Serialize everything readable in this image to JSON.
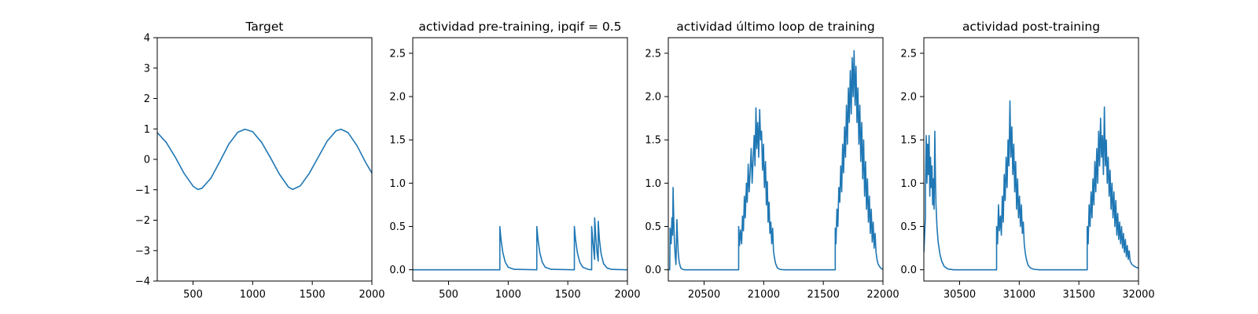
{
  "chart_data": [
    {
      "type": "line",
      "title": "Target",
      "xlim": [
        200,
        2000
      ],
      "ylim": [
        -4,
        4
      ],
      "xticks": [
        500,
        1000,
        1500,
        2000
      ],
      "yticks": [
        -4,
        -3,
        -2,
        -1,
        0,
        1,
        2,
        3,
        4
      ],
      "series": [
        {
          "color": "#1f77b4",
          "x": [
            200,
            275,
            350,
            425,
            500,
            540,
            575,
            650,
            725,
            800,
            875,
            935,
            1000,
            1075,
            1150,
            1225,
            1300,
            1335,
            1400,
            1475,
            1550,
            1625,
            1700,
            1740,
            1800,
            1875,
            1950,
            2000
          ],
          "y": [
            0.88,
            0.56,
            0.08,
            -0.46,
            -0.88,
            -0.99,
            -0.95,
            -0.62,
            -0.07,
            0.5,
            0.89,
            0.99,
            0.91,
            0.56,
            0.05,
            -0.49,
            -0.91,
            -0.99,
            -0.87,
            -0.46,
            0.07,
            0.6,
            0.94,
            0.99,
            0.88,
            0.45,
            -0.12,
            -0.45
          ]
        }
      ]
    },
    {
      "type": "line",
      "title": "actividad pre-training, ipqif = 0.5",
      "xlim": [
        200,
        2000
      ],
      "ylim": [
        -0.13,
        2.68
      ],
      "xticks": [
        500,
        1000,
        1500,
        2000
      ],
      "yticks": [
        0.0,
        0.5,
        1.0,
        1.5,
        2.0,
        2.5
      ],
      "ytick_labels": [
        "0.0",
        "0.5",
        "1.0",
        "1.5",
        "2.0",
        "2.5"
      ],
      "series": [
        {
          "color": "#1f77b4",
          "x": [
            200,
            930,
            930,
            940,
            955,
            975,
            1000,
            1050,
            1240,
            1240,
            1250,
            1265,
            1285,
            1310,
            1360,
            1555,
            1555,
            1565,
            1580,
            1600,
            1625,
            1670,
            1700,
            1700,
            1712,
            1725,
            1725,
            1735,
            1745,
            1755,
            1755,
            1765,
            1780,
            1800,
            1830,
            1870,
            2000
          ],
          "y": [
            0,
            0,
            0.5,
            0.35,
            0.2,
            0.09,
            0.03,
            0.005,
            0,
            0.5,
            0.35,
            0.2,
            0.09,
            0.03,
            0.005,
            0,
            0.5,
            0.35,
            0.2,
            0.09,
            0.03,
            0.005,
            0,
            0.5,
            0.3,
            0.12,
            0.6,
            0.38,
            0.2,
            0.1,
            0.56,
            0.35,
            0.18,
            0.07,
            0.02,
            0.004,
            0
          ]
        }
      ]
    },
    {
      "type": "line",
      "title": "actividad último loop de training",
      "xlim": [
        20200,
        22000
      ],
      "ylim": [
        -0.13,
        2.68
      ],
      "xticks": [
        20500,
        21000,
        21500,
        22000
      ],
      "yticks": [
        0.0,
        0.5,
        1.0,
        1.5,
        2.0,
        2.5
      ],
      "ytick_labels": [
        "0.0",
        "0.5",
        "1.0",
        "1.5",
        "2.0",
        "2.5"
      ],
      "series": [
        {
          "color": "#1f77b4",
          "x": [
            20200,
            20212,
            20215,
            20224,
            20230,
            20236,
            20240,
            20247,
            20252,
            20258,
            20264,
            20272,
            20278,
            20283,
            20290,
            20298,
            20305,
            20320,
            20340,
            20380,
            20790,
            20790,
            20797,
            20805,
            20815,
            20822,
            20830,
            20838,
            20845,
            20855,
            20862,
            20870,
            20878,
            20886,
            20895,
            20903,
            20912,
            20920,
            20927,
            20935,
            20942,
            20950,
            20958,
            20966,
            20974,
            20982,
            20990,
            20998,
            21006,
            21015,
            21022,
            21030,
            21037,
            21045,
            21052,
            21060,
            21067,
            21075,
            21082,
            21090,
            21100,
            21115,
            21135,
            21170,
            21600,
            21600,
            21606,
            21614,
            21622,
            21630,
            21638,
            21646,
            21654,
            21662,
            21670,
            21678,
            21686,
            21694,
            21702,
            21710,
            21718,
            21726,
            21734,
            21742,
            21750,
            21758,
            21766,
            21774,
            21782,
            21790,
            21798,
            21806,
            21814,
            21822,
            21830,
            21838,
            21846,
            21854,
            21862,
            21870,
            21878,
            21886,
            21894,
            21902,
            21910,
            21918,
            21926,
            21934,
            21942,
            21950,
            21958,
            21966,
            21975,
            21985,
            22000
          ],
          "y": [
            0,
            0,
            0.48,
            0.3,
            0.6,
            0.4,
            0.95,
            0.5,
            0.3,
            0.16,
            0.06,
            0.58,
            0.35,
            0.2,
            0.1,
            0.05,
            0.02,
            0.005,
            0,
            0,
            0,
            0.5,
            0.28,
            0.46,
            0.3,
            0.62,
            0.45,
            0.85,
            0.6,
            1.0,
            0.78,
            1.22,
            0.9,
            1.12,
            1.4,
            1.0,
            1.3,
            1.55,
            1.2,
            1.87,
            1.4,
            1.7,
            1.3,
            1.85,
            1.5,
            1.6,
            1.15,
            1.45,
            0.95,
            1.25,
            0.75,
            1.02,
            0.55,
            0.78,
            0.42,
            0.55,
            0.3,
            0.48,
            0.22,
            0.14,
            0.07,
            0.02,
            0.005,
            0,
            0,
            0.48,
            0.3,
            0.7,
            0.5,
            0.95,
            0.78,
            1.2,
            0.9,
            1.45,
            1.12,
            1.65,
            1.3,
            1.9,
            1.45,
            2.1,
            1.7,
            2.3,
            1.8,
            2.45,
            2.0,
            2.53,
            1.9,
            2.35,
            1.7,
            2.1,
            1.45,
            1.9,
            1.25,
            1.7,
            1.05,
            1.5,
            0.85,
            1.25,
            0.7,
            1.05,
            0.55,
            0.85,
            0.42,
            0.7,
            0.32,
            0.55,
            0.25,
            0.42,
            0.2,
            0.12,
            0.07,
            0.05,
            0.03,
            0.015,
            0.005
          ]
        }
      ]
    },
    {
      "type": "line",
      "title": "actividad post-training",
      "xlim": [
        30200,
        32000
      ],
      "ylim": [
        -0.13,
        2.68
      ],
      "xticks": [
        30500,
        31000,
        31500,
        32000
      ],
      "yticks": [
        0.0,
        0.5,
        1.0,
        1.5,
        2.0,
        2.5
      ],
      "ytick_labels": [
        "0.0",
        "0.5",
        "1.0",
        "1.5",
        "2.0",
        "2.5"
      ],
      "series": [
        {
          "color": "#1f77b4",
          "x": [
            30200,
            30213,
            30213,
            30220,
            30226,
            30232,
            30238,
            30244,
            30250,
            30256,
            30262,
            30268,
            30274,
            30280,
            30286,
            30292,
            30298,
            30302,
            30310,
            30320,
            30335,
            30350,
            30370,
            30400,
            30450,
            30810,
            30810,
            30818,
            30826,
            30834,
            30842,
            30850,
            30858,
            30866,
            30874,
            30882,
            30890,
            30898,
            30906,
            30914,
            30922,
            30930,
            30938,
            30946,
            30954,
            30962,
            30970,
            30978,
            30986,
            30994,
            31002,
            31010,
            31018,
            31026,
            31034,
            31042,
            31050,
            31060,
            31075,
            31095,
            31125,
            31170,
            31570,
            31570,
            31578,
            31586,
            31594,
            31602,
            31610,
            31618,
            31626,
            31634,
            31642,
            31650,
            31658,
            31666,
            31674,
            31682,
            31690,
            31698,
            31706,
            31714,
            31722,
            31730,
            31738,
            31746,
            31754,
            31762,
            31770,
            31778,
            31786,
            31794,
            31802,
            31810,
            31818,
            31826,
            31834,
            31842,
            31850,
            31858,
            31866,
            31874,
            31882,
            31890,
            31898,
            31906,
            31914,
            31922,
            31930,
            31938,
            31946,
            31955,
            31965,
            31978,
            32000
          ],
          "y": [
            0.2,
            0.6,
            0.95,
            1.55,
            1.0,
            1.45,
            1.1,
            1.55,
            0.85,
            1.3,
            0.95,
            1.2,
            0.75,
            1.05,
            0.7,
            1.6,
            1.0,
            0.75,
            0.5,
            0.32,
            0.18,
            0.1,
            0.04,
            0.01,
            0,
            0,
            0.5,
            0.3,
            0.75,
            0.45,
            0.62,
            0.4,
            0.85,
            0.55,
            1.1,
            0.8,
            1.3,
            0.95,
            1.5,
            1.2,
            1.95,
            1.3,
            1.65,
            1.1,
            1.45,
            0.9,
            1.25,
            0.7,
            1.05,
            0.6,
            0.85,
            0.5,
            0.75,
            0.42,
            0.55,
            0.3,
            0.2,
            0.12,
            0.05,
            0.02,
            0.005,
            0,
            0,
            0.5,
            0.3,
            0.75,
            0.5,
            0.9,
            0.6,
            1.05,
            0.75,
            1.25,
            0.9,
            1.4,
            1.0,
            1.6,
            1.2,
            1.75,
            1.3,
            1.55,
            1.1,
            1.88,
            1.2,
            1.5,
            1.0,
            1.3,
            0.85,
            1.15,
            0.7,
            1.0,
            0.6,
            0.9,
            0.5,
            0.8,
            0.4,
            0.65,
            0.35,
            0.55,
            0.3,
            0.5,
            0.25,
            0.42,
            0.2,
            0.35,
            0.15,
            0.28,
            0.12,
            0.22,
            0.1,
            0.08,
            0.06,
            0.05,
            0.04,
            0.03,
            0.02
          ]
        }
      ]
    }
  ]
}
